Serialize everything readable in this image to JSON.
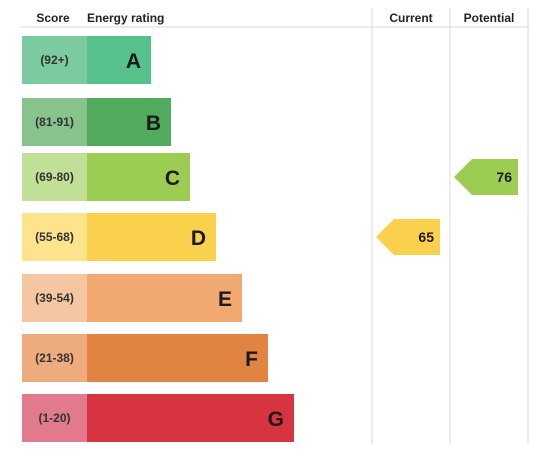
{
  "headers": {
    "score": "Score",
    "rating": "Energy rating",
    "current": "Current",
    "potential": "Potential"
  },
  "chart_data": {
    "type": "bar",
    "title": "",
    "categories": [
      "A",
      "B",
      "C",
      "D",
      "E",
      "F",
      "G"
    ],
    "score_ranges": [
      "(92+)",
      "(81-91)",
      "(69-80)",
      "(55-68)",
      "(39-54)",
      "(21-38)",
      "(1-20)"
    ],
    "bands": [
      {
        "letter": "A",
        "range": "(92+)",
        "min": 92,
        "max": 100,
        "color": "#56c18a",
        "score_color": "#7ccaa0"
      },
      {
        "letter": "B",
        "range": "(81-91)",
        "min": 81,
        "max": 91,
        "color": "#50ac5c",
        "score_color": "#87c38d"
      },
      {
        "letter": "C",
        "range": "(69-80)",
        "min": 69,
        "max": 80,
        "color": "#9ccc52",
        "score_color": "#c1df96"
      },
      {
        "letter": "D",
        "range": "(55-68)",
        "min": 55,
        "max": 68,
        "color": "#fad14d",
        "score_color": "#fce38c"
      },
      {
        "letter": "E",
        "range": "(39-54)",
        "min": 39,
        "max": 54,
        "color": "#f2a971",
        "score_color": "#f5c6a2"
      },
      {
        "letter": "F",
        "range": "(21-38)",
        "min": 21,
        "max": 38,
        "color": "#e28441",
        "score_color": "#eeac7e"
      },
      {
        "letter": "G",
        "range": "(1-20)",
        "min": 1,
        "max": 20,
        "color": "#d73441",
        "score_color": "#e27a8e"
      }
    ],
    "current": {
      "value": 65,
      "band": "D",
      "color": "#fad14d"
    },
    "potential": {
      "value": 76,
      "band": "C",
      "color": "#9ccc52"
    }
  }
}
